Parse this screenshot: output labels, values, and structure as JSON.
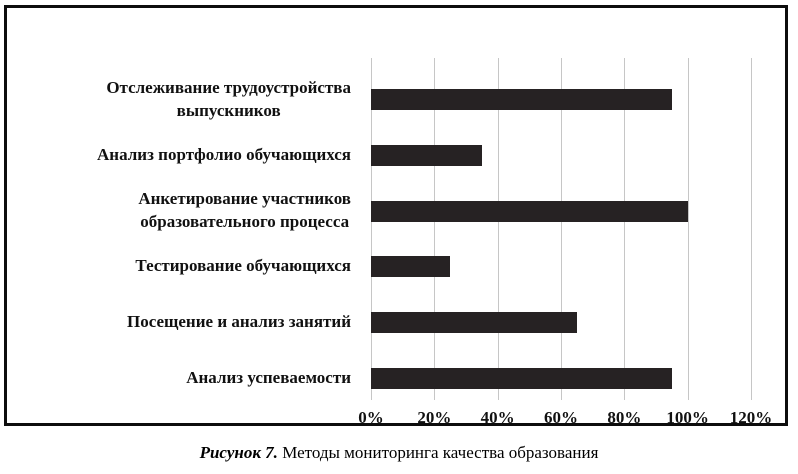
{
  "chart_data": {
    "type": "bar",
    "orientation": "horizontal",
    "title": "",
    "categories": [
      "Отслеживание трудоустройства выпускников",
      "Анализ портфолио обучающихся",
      "Анкетирование участников образовательного процесса",
      "Тестирование обучающихся",
      "Посещение и анализ занятий",
      "Анализ успеваемости"
    ],
    "categories_multiline": [
      [
        "Отслеживание трудоустройства",
        "выпускников"
      ],
      [
        "Анализ портфолио обучающихся"
      ],
      [
        "Анкетирование участников",
        "образовательного процесса"
      ],
      [
        "Тестирование обучающихся"
      ],
      [
        "Посещение и анализ занятий"
      ],
      [
        "Анализ успеваемости"
      ]
    ],
    "values": [
      95,
      35,
      100,
      25,
      65,
      95
    ],
    "xlim": [
      0,
      120
    ],
    "x_ticks": [
      "0%",
      "20%",
      "40%",
      "60%",
      "80%",
      "100%",
      "120%"
    ],
    "grid": true,
    "legend": "none",
    "bar_color": "#262223",
    "gridline_color": "#c6c6c6"
  },
  "caption": {
    "figure_label": "Рисунок 7.",
    "text": " Методы мониторинга качества образования"
  }
}
